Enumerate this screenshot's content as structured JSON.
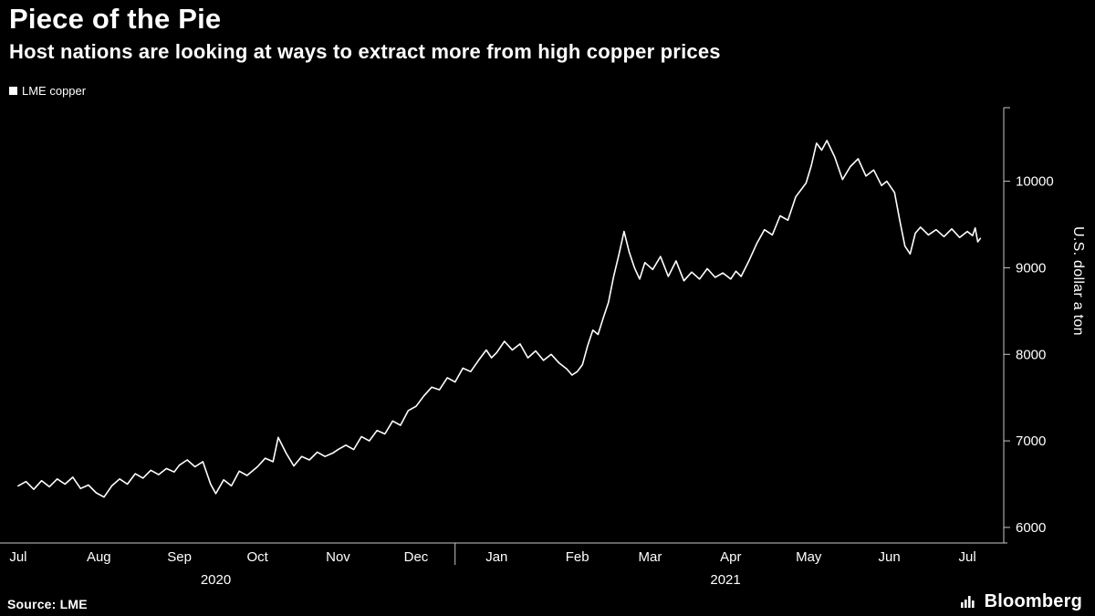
{
  "header": {
    "title": "Piece of the Pie",
    "subtitle": "Host nations are looking at ways to extract more from high copper prices"
  },
  "legend": {
    "label": "LME copper",
    "swatch_color": "#ffffff"
  },
  "footer": {
    "source": "Source: LME",
    "brand": "Bloomberg"
  },
  "colors": {
    "background": "#000000",
    "text": "#ffffff",
    "axis": "#c8c8c8",
    "line": "#ffffff"
  },
  "chart_data": {
    "type": "line",
    "title": "Piece of the Pie",
    "subtitle": "Host nations are looking at ways to extract more from high copper prices",
    "ylabel": "U.S. dollar a ton",
    "y_ticks": [
      6000,
      7000,
      8000,
      9000,
      10000
    ],
    "y_range": [
      5820,
      10850
    ],
    "x_range": [
      -7,
      379
    ],
    "x_months": [
      {
        "label": "Jul",
        "day": 0
      },
      {
        "label": "Aug",
        "day": 31
      },
      {
        "label": "Sep",
        "day": 62
      },
      {
        "label": "Oct",
        "day": 92
      },
      {
        "label": "Nov",
        "day": 123
      },
      {
        "label": "Dec",
        "day": 153
      },
      {
        "label": "Jan",
        "day": 184
      },
      {
        "label": "Feb",
        "day": 215
      },
      {
        "label": "Mar",
        "day": 243
      },
      {
        "label": "Apr",
        "day": 274
      },
      {
        "label": "May",
        "day": 304
      },
      {
        "label": "Jun",
        "day": 335
      },
      {
        "label": "Jul",
        "day": 365
      }
    ],
    "x_years": [
      {
        "label": "2020",
        "day": 76
      },
      {
        "label": "2021",
        "day": 272
      }
    ],
    "year_divider_day": 168,
    "grid": false,
    "legend_position": "top-left",
    "series": [
      {
        "name": "LME copper",
        "color": "#ffffff",
        "points": [
          [
            0,
            6480
          ],
          [
            3,
            6530
          ],
          [
            6,
            6440
          ],
          [
            9,
            6540
          ],
          [
            12,
            6470
          ],
          [
            15,
            6560
          ],
          [
            18,
            6500
          ],
          [
            21,
            6580
          ],
          [
            24,
            6450
          ],
          [
            27,
            6490
          ],
          [
            30,
            6400
          ],
          [
            33,
            6350
          ],
          [
            36,
            6480
          ],
          [
            39,
            6560
          ],
          [
            42,
            6500
          ],
          [
            45,
            6620
          ],
          [
            48,
            6570
          ],
          [
            51,
            6660
          ],
          [
            54,
            6610
          ],
          [
            57,
            6680
          ],
          [
            60,
            6640
          ],
          [
            62,
            6720
          ],
          [
            65,
            6780
          ],
          [
            68,
            6700
          ],
          [
            71,
            6760
          ],
          [
            74,
            6500
          ],
          [
            76,
            6390
          ],
          [
            79,
            6550
          ],
          [
            82,
            6480
          ],
          [
            85,
            6650
          ],
          [
            88,
            6600
          ],
          [
            92,
            6700
          ],
          [
            95,
            6800
          ],
          [
            98,
            6760
          ],
          [
            100,
            7040
          ],
          [
            103,
            6860
          ],
          [
            106,
            6710
          ],
          [
            109,
            6820
          ],
          [
            112,
            6780
          ],
          [
            115,
            6870
          ],
          [
            118,
            6820
          ],
          [
            121,
            6860
          ],
          [
            123,
            6900
          ],
          [
            126,
            6950
          ],
          [
            129,
            6900
          ],
          [
            132,
            7050
          ],
          [
            135,
            7000
          ],
          [
            138,
            7120
          ],
          [
            141,
            7080
          ],
          [
            144,
            7230
          ],
          [
            147,
            7180
          ],
          [
            150,
            7350
          ],
          [
            153,
            7400
          ],
          [
            156,
            7520
          ],
          [
            159,
            7620
          ],
          [
            162,
            7590
          ],
          [
            165,
            7730
          ],
          [
            168,
            7680
          ],
          [
            171,
            7840
          ],
          [
            174,
            7800
          ],
          [
            177,
            7930
          ],
          [
            180,
            8050
          ],
          [
            182,
            7960
          ],
          [
            184,
            8020
          ],
          [
            187,
            8150
          ],
          [
            190,
            8050
          ],
          [
            193,
            8120
          ],
          [
            196,
            7960
          ],
          [
            199,
            8040
          ],
          [
            202,
            7930
          ],
          [
            205,
            8000
          ],
          [
            208,
            7900
          ],
          [
            211,
            7830
          ],
          [
            213,
            7760
          ],
          [
            215,
            7800
          ],
          [
            217,
            7880
          ],
          [
            219,
            8100
          ],
          [
            221,
            8280
          ],
          [
            223,
            8230
          ],
          [
            225,
            8420
          ],
          [
            227,
            8600
          ],
          [
            229,
            8900
          ],
          [
            231,
            9150
          ],
          [
            233,
            9420
          ],
          [
            235,
            9180
          ],
          [
            237,
            9000
          ],
          [
            239,
            8870
          ],
          [
            241,
            9060
          ],
          [
            244,
            8980
          ],
          [
            247,
            9130
          ],
          [
            250,
            8900
          ],
          [
            253,
            9080
          ],
          [
            256,
            8850
          ],
          [
            259,
            8950
          ],
          [
            262,
            8870
          ],
          [
            265,
            8990
          ],
          [
            268,
            8890
          ],
          [
            271,
            8940
          ],
          [
            274,
            8870
          ],
          [
            276,
            8960
          ],
          [
            278,
            8900
          ],
          [
            281,
            9080
          ],
          [
            284,
            9280
          ],
          [
            287,
            9440
          ],
          [
            290,
            9380
          ],
          [
            293,
            9600
          ],
          [
            296,
            9550
          ],
          [
            299,
            9820
          ],
          [
            301,
            9900
          ],
          [
            303,
            9980
          ],
          [
            305,
            10180
          ],
          [
            307,
            10440
          ],
          [
            309,
            10360
          ],
          [
            311,
            10470
          ],
          [
            314,
            10280
          ],
          [
            317,
            10020
          ],
          [
            320,
            10170
          ],
          [
            323,
            10260
          ],
          [
            326,
            10060
          ],
          [
            329,
            10130
          ],
          [
            332,
            9950
          ],
          [
            334,
            10000
          ],
          [
            337,
            9870
          ],
          [
            339,
            9550
          ],
          [
            341,
            9250
          ],
          [
            343,
            9160
          ],
          [
            345,
            9400
          ],
          [
            347,
            9470
          ],
          [
            350,
            9380
          ],
          [
            353,
            9440
          ],
          [
            356,
            9360
          ],
          [
            359,
            9450
          ],
          [
            362,
            9350
          ],
          [
            365,
            9420
          ],
          [
            367,
            9370
          ],
          [
            368,
            9460
          ],
          [
            369,
            9300
          ],
          [
            370,
            9340
          ]
        ]
      }
    ]
  }
}
